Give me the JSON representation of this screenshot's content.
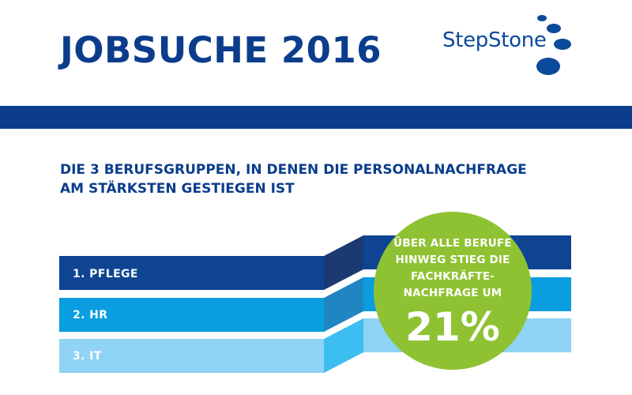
{
  "header": {
    "title": "JOBSUCHE 2016",
    "logo_text": "StepStone"
  },
  "heading": {
    "line1": "DIE 3 BERUFSGRUPPEN, IN DENEN DIE PERSONALNACHFRAGE",
    "line2": "AM STÄRKSTEN GESTIEGEN IST"
  },
  "ranking": [
    {
      "label": "1. PFLEGE"
    },
    {
      "label": "2. HR"
    },
    {
      "label": "3. IT"
    }
  ],
  "badge": {
    "text_lines": [
      "ÜBER ALLE BERUFE",
      "HINWEG STIEG DIE",
      "FACHKRÄFTE-",
      "NACHFRAGE UM"
    ],
    "value": "21%"
  },
  "colors": {
    "navy": "#0b3d8c",
    "ribbon1": "#0e4492",
    "ribbon2": "#0a9de0",
    "ribbon3": "#8fd3f5",
    "badge": "#8fc233"
  }
}
